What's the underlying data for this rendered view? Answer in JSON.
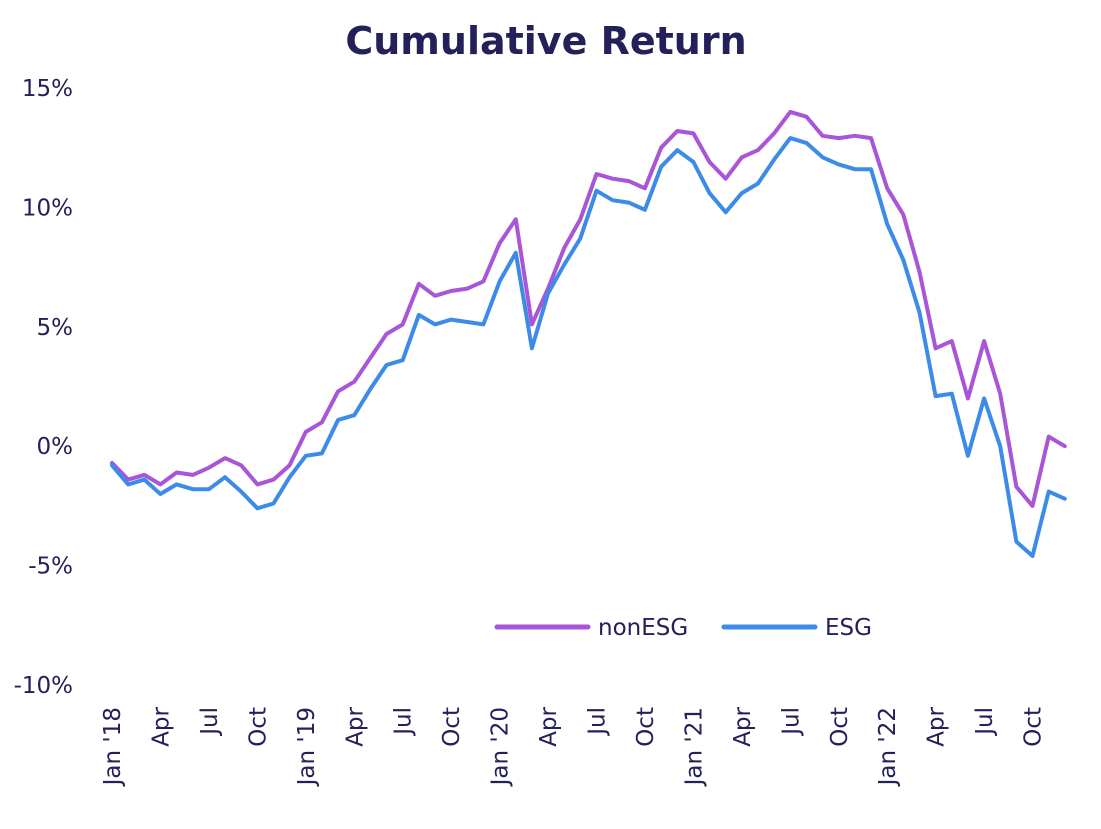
{
  "chart_data": {
    "type": "line",
    "title": "Cumulative Return",
    "xlabel": "",
    "ylabel": "",
    "ylim": [
      -10,
      15
    ],
    "yticks": [
      "15%",
      "10%",
      "5%",
      "0%",
      "-5%",
      "-10%"
    ],
    "ytick_values": [
      15,
      10,
      5,
      0,
      -5,
      -10
    ],
    "xticks": [
      {
        "index": 0,
        "label": "Jan '18"
      },
      {
        "index": 3,
        "label": "Apr"
      },
      {
        "index": 6,
        "label": "Jul"
      },
      {
        "index": 9,
        "label": "Oct"
      },
      {
        "index": 12,
        "label": "Jan '19"
      },
      {
        "index": 15,
        "label": "Apr"
      },
      {
        "index": 18,
        "label": "Jul"
      },
      {
        "index": 21,
        "label": "Oct"
      },
      {
        "index": 24,
        "label": "Jan '20"
      },
      {
        "index": 27,
        "label": "Apr"
      },
      {
        "index": 30,
        "label": "Jul"
      },
      {
        "index": 33,
        "label": "Oct"
      },
      {
        "index": 36,
        "label": "Jan '21"
      },
      {
        "index": 39,
        "label": "Apr"
      },
      {
        "index": 42,
        "label": "Jul"
      },
      {
        "index": 45,
        "label": "Oct"
      },
      {
        "index": 48,
        "label": "Jan '22"
      },
      {
        "index": 51,
        "label": "Apr"
      },
      {
        "index": 54,
        "label": "Jul"
      },
      {
        "index": 57,
        "label": "Oct"
      }
    ],
    "grid": false,
    "legend_position": "bottom-right",
    "series": [
      {
        "name": "nonESG",
        "color": "#a855d8",
        "values": [
          -0.7,
          -1.4,
          -1.2,
          -1.6,
          -1.1,
          -1.2,
          -0.9,
          -0.5,
          -0.8,
          -1.6,
          -1.4,
          -0.8,
          0.6,
          1.0,
          2.3,
          2.7,
          3.7,
          4.7,
          5.1,
          6.8,
          6.3,
          6.5,
          6.6,
          6.9,
          8.5,
          9.5,
          5.1,
          6.6,
          8.3,
          9.5,
          11.4,
          11.2,
          11.1,
          10.8,
          12.5,
          13.2,
          13.1,
          11.9,
          11.2,
          12.1,
          12.4,
          13.1,
          14.0,
          13.8,
          13.0,
          12.9,
          13.0,
          12.9,
          10.8,
          9.7,
          7.3,
          4.1,
          4.4,
          2.0,
          4.4,
          2.2,
          -1.7,
          -2.5,
          0.4,
          0.0
        ]
      },
      {
        "name": "ESG",
        "color": "#3d8be8",
        "values": [
          -0.8,
          -1.6,
          -1.4,
          -2.0,
          -1.6,
          -1.8,
          -1.8,
          -1.3,
          -1.9,
          -2.6,
          -2.4,
          -1.3,
          -0.4,
          -0.3,
          1.1,
          1.3,
          2.4,
          3.4,
          3.6,
          5.5,
          5.1,
          5.3,
          5.2,
          5.1,
          6.9,
          8.1,
          4.1,
          6.4,
          7.6,
          8.7,
          10.7,
          10.3,
          10.2,
          9.9,
          11.7,
          12.4,
          11.9,
          10.6,
          9.8,
          10.6,
          11.0,
          12.0,
          12.9,
          12.7,
          12.1,
          11.8,
          11.6,
          11.6,
          9.3,
          7.8,
          5.6,
          2.1,
          2.2,
          -0.4,
          2.0,
          0.0,
          -4.0,
          -4.6,
          -1.9,
          -2.2
        ]
      }
    ]
  }
}
